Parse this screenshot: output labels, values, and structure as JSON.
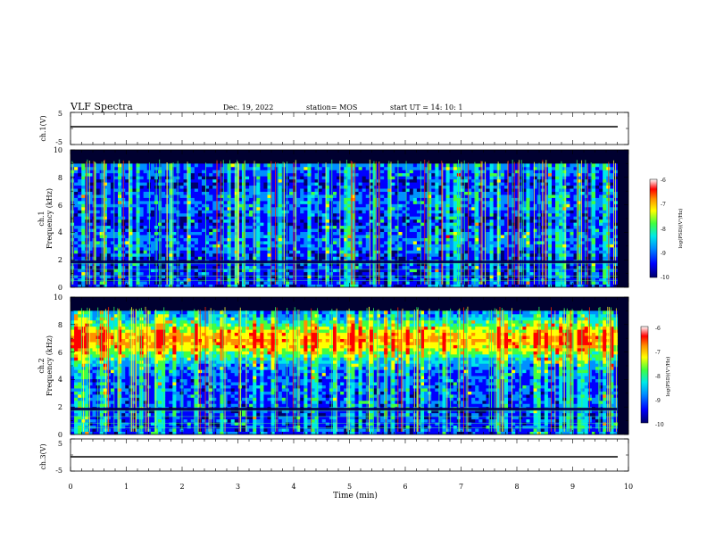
{
  "header": {
    "title": "VLF Spectra",
    "date": "Dec. 19, 2022",
    "station": "station= MOS",
    "start": "start  UT =   14: 10: 1"
  },
  "colors": {
    "spectrogram_background": "#000030",
    "colormap": [
      "#00006a",
      "#0000ff",
      "#0090ff",
      "#00e8e8",
      "#40ff40",
      "#ffff00",
      "#ff9000",
      "#ff0000",
      "#ffffff"
    ]
  },
  "chart_data": [
    {
      "type": "line",
      "panel": "ch1-voltage",
      "ylabel": "ch.1(V)",
      "ylim": [
        -5,
        5
      ],
      "yticks": [
        "5",
        "-5"
      ],
      "x": [
        0,
        9.8
      ],
      "values": [
        0,
        0
      ]
    },
    {
      "type": "heatmap",
      "panel": "ch1-spectrogram",
      "ylabel_channel": "ch.1",
      "ylabel": "Frequency (kHz)",
      "ylim": [
        0,
        10
      ],
      "yticks": [
        "0",
        "2",
        "4",
        "6",
        "8",
        "10"
      ],
      "data_xlim": [
        0,
        9.8
      ],
      "band_limit_khz": 9.0,
      "colorbar": {
        "label": "log(PSD)(V²/Hz)",
        "range": [
          -10,
          -6
        ],
        "ticks": [
          "-6",
          "-7",
          "-8",
          "-9",
          "-10"
        ]
      }
    },
    {
      "type": "heatmap",
      "panel": "ch2-spectrogram",
      "ylabel_channel": "ch.2",
      "ylabel": "Frequency (kHz)",
      "ylim": [
        0,
        10
      ],
      "yticks": [
        "0",
        "2",
        "4",
        "6",
        "8",
        "10"
      ],
      "data_xlim": [
        0,
        9.8
      ],
      "band_limit_khz": 9.0,
      "colorbar": {
        "label": "log(PSD)(V²/Hz)",
        "range": [
          -10,
          -6
        ],
        "ticks": [
          "-6",
          "-7",
          "-8",
          "-9",
          "-10"
        ]
      }
    },
    {
      "type": "line",
      "panel": "ch3-voltage",
      "ylabel": "ch.3(V)",
      "ylim": [
        -5,
        5
      ],
      "yticks": [
        "5",
        "-5"
      ],
      "x": [
        0,
        9.8
      ],
      "values": [
        0,
        0
      ]
    }
  ],
  "xaxis": {
    "label": "Time  (min)",
    "xlim": [
      0,
      10
    ],
    "ticks": [
      "0",
      "1",
      "2",
      "3",
      "4",
      "5",
      "6",
      "7",
      "8",
      "9",
      "10"
    ]
  }
}
